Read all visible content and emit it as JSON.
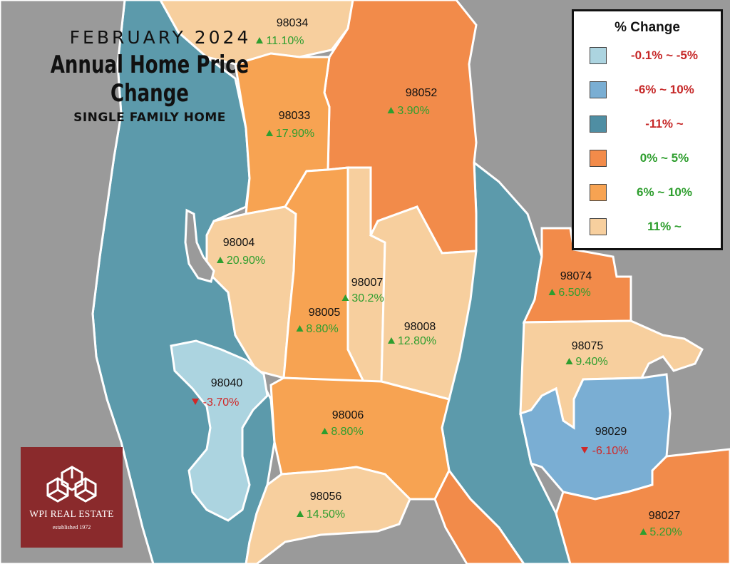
{
  "title": {
    "month": "FEBRUARY 2024",
    "main": "Annual Home Price Change",
    "subtitle": "SINGLE FAMILY HOME"
  },
  "legend": {
    "title": "% Change",
    "items": [
      {
        "label": "-0.1% ~ -5%",
        "swatch": "#acd4e0",
        "text_color": "#c62828"
      },
      {
        "label": "-6% ~ 10%",
        "swatch": "#7aaed3",
        "text_color": "#c62828"
      },
      {
        "label": "-11% ~",
        "swatch": "#4f8ea3",
        "text_color": "#c62828"
      },
      {
        "label": "0% ~ 5%",
        "swatch": "#f28b4a",
        "text_color": "#2e9e2e"
      },
      {
        "label": "6% ~ 10%",
        "swatch": "#f7a352",
        "text_color": "#2e9e2e"
      },
      {
        "label": "11% ~",
        "swatch": "#f7cf9e",
        "text_color": "#2e9e2e"
      }
    ]
  },
  "regions": [
    {
      "zip": "98034",
      "change": "11.10%",
      "direction": "up"
    },
    {
      "zip": "98052",
      "change": "3.90%",
      "direction": "up"
    },
    {
      "zip": "98033",
      "change": "17.90%",
      "direction": "up"
    },
    {
      "zip": "98004",
      "change": "20.90%",
      "direction": "up"
    },
    {
      "zip": "98007",
      "change": "30.2%",
      "direction": "up"
    },
    {
      "zip": "98005",
      "change": "8.80%",
      "direction": "up"
    },
    {
      "zip": "98008",
      "change": "12.80%",
      "direction": "up"
    },
    {
      "zip": "98074",
      "change": "6.50%",
      "direction": "up"
    },
    {
      "zip": "98075",
      "change": "9.40%",
      "direction": "up"
    },
    {
      "zip": "98040",
      "change": "-3.70%",
      "direction": "down"
    },
    {
      "zip": "98006",
      "change": "8.80%",
      "direction": "up"
    },
    {
      "zip": "98029",
      "change": "-6.10%",
      "direction": "down"
    },
    {
      "zip": "98056",
      "change": "14.50%",
      "direction": "up"
    },
    {
      "zip": "98027",
      "change": "5.20%",
      "direction": "up"
    }
  ],
  "colors": {
    "background": "#9a9a9a",
    "water": "#5c9aab",
    "light_orange": "#f7cf9e",
    "mid_orange": "#f7a352",
    "dark_orange": "#f28b4a",
    "light_blue": "#acd4e0",
    "mid_blue": "#7aaed3",
    "up_arrow": "#2e9e2e",
    "down_arrow": "#d02828"
  },
  "logo": {
    "name": "WPI REAL ESTATE",
    "established": "established 1972"
  }
}
